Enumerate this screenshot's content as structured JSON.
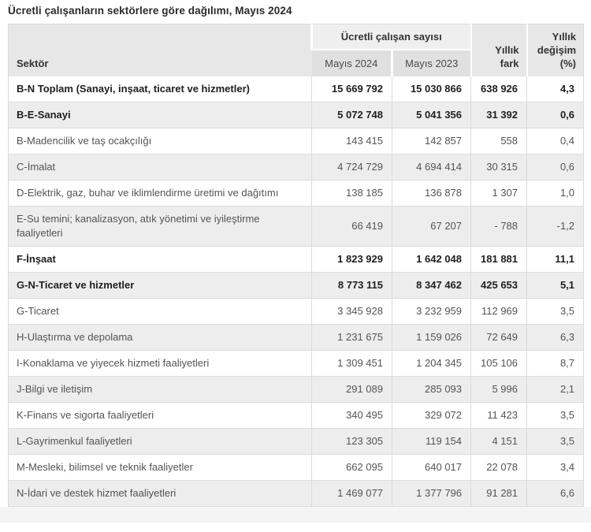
{
  "title": "Ücretli çalışanların sektörlere göre dağılımı, Mayıs 2024",
  "table": {
    "headers": {
      "sector": "Sektör",
      "count_group": "Ücretli çalışan sayısı",
      "mayis_2024": "Mayıs 2024",
      "mayis_2023": "Mayıs 2023",
      "yillik_fark": "Yıllık fark",
      "yillik_degisim": "Yıllık değişim (%)"
    }
  },
  "colors": {
    "header_bg": "#e7e7e7",
    "subheader_bg": "#e0e0e0",
    "stripe_bg": "#ededed",
    "grid_line": "#dbdbdb"
  },
  "chart_data": {
    "type": "table",
    "title": "Ücretli çalışanların sektörlere göre dağılımı, Mayıs 2024",
    "columns": [
      "Sektör",
      "Mayıs 2024",
      "Mayıs 2023",
      "Yıllık fark",
      "Yıllık değişim (%)"
    ],
    "column_group": {
      "label": "Ücretli çalışan sayısı",
      "spans": [
        "Mayıs 2024",
        "Mayıs 2023"
      ]
    },
    "rows": [
      {
        "sector": "B-N Toplam (Sanayi, inşaat, ticaret ve hizmetler)",
        "mayis_2024": "15 669 792",
        "mayis_2023": "15 030 866",
        "yillik_fark": "638 926",
        "yillik_degisim_pct": "4,3",
        "bold": true
      },
      {
        "sector": "B-E-Sanayi",
        "mayis_2024": "5 072 748",
        "mayis_2023": "5 041 356",
        "yillik_fark": "31 392",
        "yillik_degisim_pct": "0,6",
        "bold": true
      },
      {
        "sector": "B-Madencilik ve taş ocakçılığı",
        "mayis_2024": "143 415",
        "mayis_2023": "142 857",
        "yillik_fark": "558",
        "yillik_degisim_pct": "0,4",
        "bold": false
      },
      {
        "sector": "C-İmalat",
        "mayis_2024": "4 724 729",
        "mayis_2023": "4 694 414",
        "yillik_fark": "30 315",
        "yillik_degisim_pct": "0,6",
        "bold": false
      },
      {
        "sector": "D-Elektrik, gaz, buhar ve iklimlendirme üretimi ve dağıtımı",
        "mayis_2024": "138 185",
        "mayis_2023": "136 878",
        "yillik_fark": "1 307",
        "yillik_degisim_pct": "1,0",
        "bold": false
      },
      {
        "sector": "E-Su temini; kanalizasyon, atık yönetimi ve iyileştirme faaliyetleri",
        "mayis_2024": "66 419",
        "mayis_2023": "67 207",
        "yillik_fark": "- 788",
        "yillik_degisim_pct": "-1,2",
        "bold": false
      },
      {
        "sector": "F-İnşaat",
        "mayis_2024": "1 823 929",
        "mayis_2023": "1 642 048",
        "yillik_fark": "181 881",
        "yillik_degisim_pct": "11,1",
        "bold": true
      },
      {
        "sector": "G-N-Ticaret ve hizmetler",
        "mayis_2024": "8 773 115",
        "mayis_2023": "8 347 462",
        "yillik_fark": "425 653",
        "yillik_degisim_pct": "5,1",
        "bold": true
      },
      {
        "sector": "G-Ticaret",
        "mayis_2024": "3 345 928",
        "mayis_2023": "3 232 959",
        "yillik_fark": "112 969",
        "yillik_degisim_pct": "3,5",
        "bold": false
      },
      {
        "sector": "H-Ulaştırma ve depolama",
        "mayis_2024": "1 231 675",
        "mayis_2023": "1 159 026",
        "yillik_fark": "72 649",
        "yillik_degisim_pct": "6,3",
        "bold": false
      },
      {
        "sector": "I-Konaklama ve yiyecek hizmeti faaliyetleri",
        "mayis_2024": "1 309 451",
        "mayis_2023": "1 204 345",
        "yillik_fark": "105 106",
        "yillik_degisim_pct": "8,7",
        "bold": false
      },
      {
        "sector": "J-Bilgi ve iletişim",
        "mayis_2024": "291 089",
        "mayis_2023": "285 093",
        "yillik_fark": "5 996",
        "yillik_degisim_pct": "2,1",
        "bold": false
      },
      {
        "sector": "K-Finans ve sigorta faaliyetleri",
        "mayis_2024": "340 495",
        "mayis_2023": "329 072",
        "yillik_fark": "11 423",
        "yillik_degisim_pct": "3,5",
        "bold": false
      },
      {
        "sector": "L-Gayrimenkul faaliyetleri",
        "mayis_2024": "123 305",
        "mayis_2023": "119 154",
        "yillik_fark": "4 151",
        "yillik_degisim_pct": "3,5",
        "bold": false
      },
      {
        "sector": "M-Mesleki, bilimsel ve teknik faaliyetler",
        "mayis_2024": "662 095",
        "mayis_2023": "640 017",
        "yillik_fark": "22 078",
        "yillik_degisim_pct": "3,4",
        "bold": false
      },
      {
        "sector": "N-İdari ve destek hizmet faaliyetleri",
        "mayis_2024": "1 469 077",
        "mayis_2023": "1 377 796",
        "yillik_fark": "91 281",
        "yillik_degisim_pct": "6,6",
        "bold": false
      }
    ]
  }
}
